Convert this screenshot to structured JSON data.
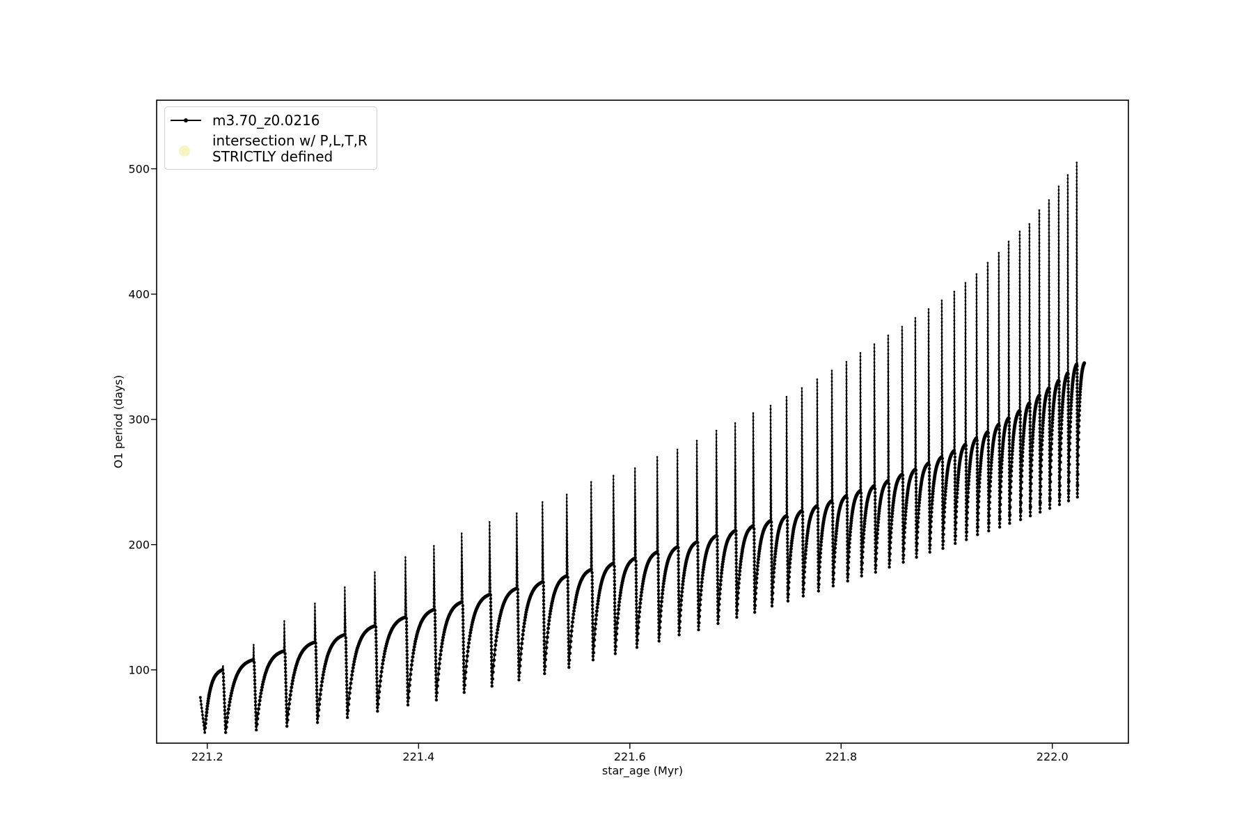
{
  "figure": {
    "background": "#ffffff",
    "series_color": "#000000"
  },
  "legend": {
    "items": [
      {
        "label": "m3.70_z0.0216",
        "marker": "line-with-dot",
        "color": "#000000"
      },
      {
        "label_line1": "intersection w/ P,L,T,R",
        "label_line2": "STRICTLY defined",
        "marker": "filled-circle",
        "color": "#f6f6c3"
      }
    ]
  },
  "chart_data": {
    "type": "line",
    "title": "",
    "xlabel": "star_age (Myr)",
    "ylabel": "O1 period (days)",
    "xlim": [
      221.152,
      222.072
    ],
    "ylim": [
      41.5,
      554.8
    ],
    "xticks": [
      221.2,
      221.4,
      221.6,
      221.8,
      222.0
    ],
    "xtick_labels": [
      "221.2",
      "221.4",
      "221.6",
      "221.8",
      "222.0"
    ],
    "yticks": [
      100,
      200,
      300,
      400,
      500
    ],
    "ytick_labels": [
      "100",
      "200",
      "300",
      "400",
      "500"
    ],
    "grid": false,
    "legend_position": "upper left",
    "series": [
      {
        "name": "m3.70_z0.0216",
        "color": "#000000",
        "style": "line with dot markers"
      }
    ],
    "pattern": "sawtooth pulsation cycles: concave rise to a base maximum, narrow upward spike, sharp drop to a minimum, repeating with shrinking period and growing amplitude",
    "start_point": {
      "age": 221.1934,
      "value": 78
    },
    "end_point": {
      "age": 222.0303,
      "value": 345
    },
    "cycles": {
      "spike_age_myr": [
        221.2145,
        221.2435,
        221.2725,
        221.3015,
        221.3298,
        221.3582,
        221.3872,
        221.4142,
        221.4405,
        221.4669,
        221.4926,
        221.517,
        221.54,
        221.5631,
        221.5842,
        221.6046,
        221.6257,
        221.6448,
        221.6632,
        221.6817,
        221.6995,
        221.7166,
        221.7331,
        221.7482,
        221.7627,
        221.7772,
        221.7911,
        221.8049,
        221.8181,
        221.8313,
        221.8444,
        221.8576,
        221.8701,
        221.8827,
        221.8952,
        221.907,
        221.9176,
        221.9281,
        221.9387,
        221.9492,
        221.9585,
        221.969,
        221.9782,
        221.9875,
        221.9967,
        222.0059,
        222.0145,
        222.023
      ],
      "spike_peak_days": [
        103,
        120,
        139,
        153,
        166,
        178,
        190,
        199,
        209,
        218,
        225,
        234,
        240,
        250,
        255,
        261,
        270,
        276,
        283,
        291,
        297,
        305,
        311,
        318,
        325,
        332,
        339,
        346,
        353,
        360,
        367,
        374,
        381,
        388,
        395,
        402,
        409,
        416,
        425,
        433,
        442,
        450,
        456,
        467,
        475,
        486,
        495,
        505
      ],
      "base_max_days": [
        100,
        108,
        115,
        122,
        128,
        135,
        142,
        148,
        154,
        160,
        165,
        170,
        175,
        180,
        185,
        189,
        194,
        198,
        202,
        207,
        211,
        215,
        219,
        223,
        227,
        231,
        235,
        239,
        243,
        247,
        251,
        256,
        260,
        265,
        270,
        275,
        280,
        285,
        290,
        296,
        301,
        307,
        313,
        319,
        325,
        331,
        337,
        344
      ],
      "min_after_days": [
        50,
        52,
        55,
        58,
        62,
        67,
        72,
        76,
        82,
        87,
        92,
        97,
        102,
        108,
        113,
        118,
        123,
        128,
        132,
        137,
        142,
        146,
        151,
        155,
        159,
        163,
        167,
        171,
        175,
        178,
        182,
        186,
        190,
        194,
        197,
        201,
        204,
        208,
        211,
        214,
        217,
        220,
        223,
        226,
        229,
        232,
        235,
        238
      ]
    }
  }
}
